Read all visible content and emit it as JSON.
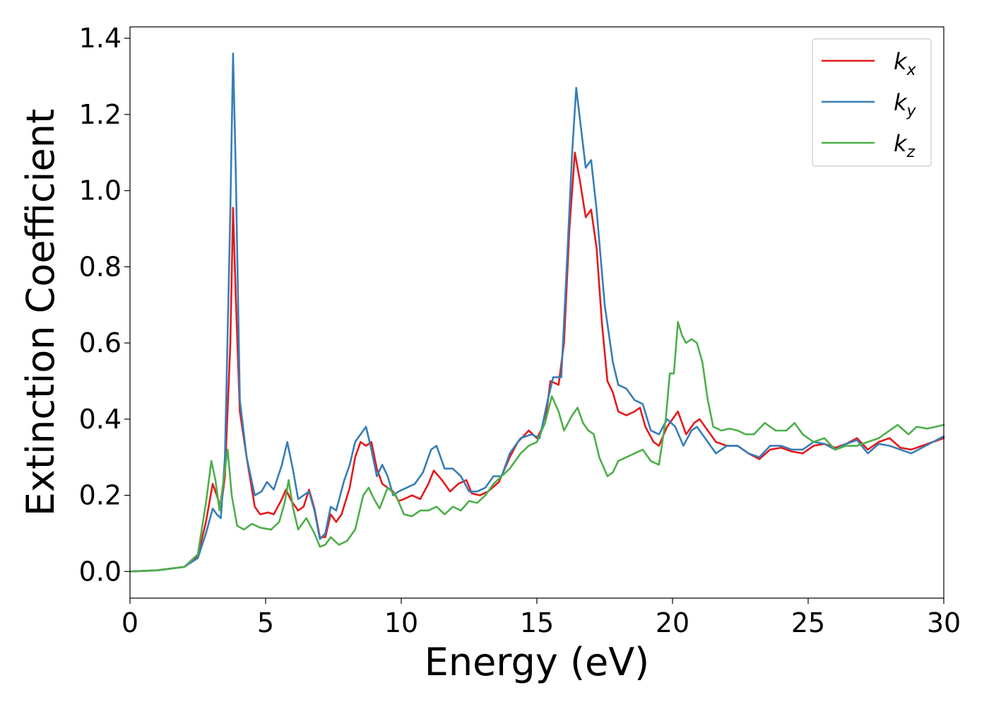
{
  "chart_data": {
    "type": "line",
    "xlabel": "Energy (eV)",
    "ylabel": "Extinction Coefficient",
    "xlim": [
      0,
      30
    ],
    "ylim": [
      -0.07,
      1.43
    ],
    "xticks": [
      0,
      5,
      10,
      15,
      20,
      25,
      30
    ],
    "yticks": [
      0.0,
      0.2,
      0.4,
      0.6,
      0.8,
      1.0,
      1.2,
      1.4
    ],
    "xtick_labels": [
      "0",
      "5",
      "10",
      "15",
      "20",
      "25",
      "30"
    ],
    "ytick_labels": [
      "0.0",
      "0.2",
      "0.4",
      "0.6",
      "0.8",
      "1.0",
      "1.2",
      "1.4"
    ],
    "legend_position": "top-right",
    "grid": false,
    "series": [
      {
        "name": "k_x",
        "legend_base": "k",
        "legend_sub": "x",
        "color": "#e41a1c",
        "points": [
          [
            0,
            0
          ],
          [
            1,
            0.003
          ],
          [
            2,
            0.012
          ],
          [
            2.5,
            0.04
          ],
          [
            2.8,
            0.13
          ],
          [
            3.05,
            0.23
          ],
          [
            3.2,
            0.2
          ],
          [
            3.35,
            0.165
          ],
          [
            3.5,
            0.25
          ],
          [
            3.7,
            0.6
          ],
          [
            3.8,
            0.955
          ],
          [
            3.9,
            0.72
          ],
          [
            4.05,
            0.42
          ],
          [
            4.3,
            0.3
          ],
          [
            4.6,
            0.17
          ],
          [
            4.8,
            0.15
          ],
          [
            5.1,
            0.155
          ],
          [
            5.3,
            0.15
          ],
          [
            5.6,
            0.19
          ],
          [
            5.75,
            0.215
          ],
          [
            5.95,
            0.185
          ],
          [
            6.2,
            0.16
          ],
          [
            6.4,
            0.17
          ],
          [
            6.6,
            0.215
          ],
          [
            6.8,
            0.165
          ],
          [
            7.0,
            0.09
          ],
          [
            7.2,
            0.09
          ],
          [
            7.4,
            0.15
          ],
          [
            7.6,
            0.13
          ],
          [
            7.8,
            0.15
          ],
          [
            8.1,
            0.22
          ],
          [
            8.3,
            0.3
          ],
          [
            8.5,
            0.34
          ],
          [
            8.7,
            0.33
          ],
          [
            8.9,
            0.34
          ],
          [
            9.1,
            0.27
          ],
          [
            9.3,
            0.23
          ],
          [
            9.5,
            0.22
          ],
          [
            9.7,
            0.21
          ],
          [
            9.9,
            0.185
          ],
          [
            10.1,
            0.19
          ],
          [
            10.4,
            0.2
          ],
          [
            10.7,
            0.19
          ],
          [
            11.0,
            0.23
          ],
          [
            11.2,
            0.265
          ],
          [
            11.5,
            0.24
          ],
          [
            11.8,
            0.21
          ],
          [
            12.1,
            0.23
          ],
          [
            12.4,
            0.24
          ],
          [
            12.6,
            0.205
          ],
          [
            12.9,
            0.2
          ],
          [
            13.2,
            0.21
          ],
          [
            13.6,
            0.235
          ],
          [
            14.0,
            0.3
          ],
          [
            14.3,
            0.34
          ],
          [
            14.7,
            0.37
          ],
          [
            15.0,
            0.35
          ],
          [
            15.3,
            0.39
          ],
          [
            15.5,
            0.5
          ],
          [
            15.8,
            0.49
          ],
          [
            16.0,
            0.6
          ],
          [
            16.2,
            0.9
          ],
          [
            16.4,
            1.1
          ],
          [
            16.6,
            1.02
          ],
          [
            16.8,
            0.93
          ],
          [
            17.0,
            0.95
          ],
          [
            17.2,
            0.85
          ],
          [
            17.4,
            0.65
          ],
          [
            17.6,
            0.5
          ],
          [
            17.8,
            0.47
          ],
          [
            18.0,
            0.42
          ],
          [
            18.3,
            0.41
          ],
          [
            18.6,
            0.42
          ],
          [
            18.8,
            0.43
          ],
          [
            19.0,
            0.38
          ],
          [
            19.3,
            0.34
          ],
          [
            19.5,
            0.33
          ],
          [
            19.8,
            0.38
          ],
          [
            20.2,
            0.42
          ],
          [
            20.5,
            0.36
          ],
          [
            20.8,
            0.39
          ],
          [
            21.0,
            0.4
          ],
          [
            21.3,
            0.37
          ],
          [
            21.6,
            0.34
          ],
          [
            22.0,
            0.33
          ],
          [
            22.4,
            0.33
          ],
          [
            22.8,
            0.31
          ],
          [
            23.2,
            0.295
          ],
          [
            23.6,
            0.32
          ],
          [
            24.0,
            0.325
          ],
          [
            24.4,
            0.315
          ],
          [
            24.8,
            0.31
          ],
          [
            25.2,
            0.33
          ],
          [
            25.6,
            0.335
          ],
          [
            26.0,
            0.325
          ],
          [
            26.4,
            0.335
          ],
          [
            26.8,
            0.35
          ],
          [
            27.2,
            0.32
          ],
          [
            27.6,
            0.34
          ],
          [
            28.0,
            0.35
          ],
          [
            28.4,
            0.325
          ],
          [
            28.8,
            0.32
          ],
          [
            29.2,
            0.33
          ],
          [
            29.6,
            0.34
          ],
          [
            30.0,
            0.35
          ]
        ]
      },
      {
        "name": "k_y",
        "legend_base": "k",
        "legend_sub": "y",
        "color": "#377eb8",
        "points": [
          [
            0,
            0
          ],
          [
            1,
            0.003
          ],
          [
            2,
            0.012
          ],
          [
            2.5,
            0.035
          ],
          [
            2.8,
            0.1
          ],
          [
            3.05,
            0.165
          ],
          [
            3.2,
            0.15
          ],
          [
            3.35,
            0.14
          ],
          [
            3.5,
            0.3
          ],
          [
            3.7,
            0.95
          ],
          [
            3.8,
            1.36
          ],
          [
            3.9,
            1.05
          ],
          [
            4.05,
            0.45
          ],
          [
            4.3,
            0.3
          ],
          [
            4.6,
            0.2
          ],
          [
            4.85,
            0.21
          ],
          [
            5.05,
            0.235
          ],
          [
            5.3,
            0.215
          ],
          [
            5.6,
            0.28
          ],
          [
            5.8,
            0.34
          ],
          [
            6.0,
            0.27
          ],
          [
            6.2,
            0.19
          ],
          [
            6.4,
            0.2
          ],
          [
            6.6,
            0.21
          ],
          [
            6.8,
            0.16
          ],
          [
            7.0,
            0.085
          ],
          [
            7.2,
            0.1
          ],
          [
            7.4,
            0.17
          ],
          [
            7.6,
            0.16
          ],
          [
            7.9,
            0.24
          ],
          [
            8.1,
            0.28
          ],
          [
            8.3,
            0.34
          ],
          [
            8.5,
            0.36
          ],
          [
            8.7,
            0.38
          ],
          [
            8.9,
            0.32
          ],
          [
            9.1,
            0.25
          ],
          [
            9.3,
            0.28
          ],
          [
            9.5,
            0.25
          ],
          [
            9.7,
            0.2
          ],
          [
            9.9,
            0.21
          ],
          [
            10.2,
            0.22
          ],
          [
            10.5,
            0.23
          ],
          [
            10.8,
            0.26
          ],
          [
            11.1,
            0.32
          ],
          [
            11.3,
            0.33
          ],
          [
            11.6,
            0.27
          ],
          [
            11.9,
            0.27
          ],
          [
            12.2,
            0.25
          ],
          [
            12.5,
            0.21
          ],
          [
            12.8,
            0.21
          ],
          [
            13.1,
            0.22
          ],
          [
            13.4,
            0.25
          ],
          [
            13.7,
            0.25
          ],
          [
            14.0,
            0.31
          ],
          [
            14.4,
            0.35
          ],
          [
            14.8,
            0.36
          ],
          [
            15.1,
            0.35
          ],
          [
            15.4,
            0.45
          ],
          [
            15.6,
            0.51
          ],
          [
            15.9,
            0.51
          ],
          [
            16.1,
            0.8
          ],
          [
            16.3,
            1.1
          ],
          [
            16.45,
            1.27
          ],
          [
            16.6,
            1.18
          ],
          [
            16.8,
            1.06
          ],
          [
            17.0,
            1.08
          ],
          [
            17.2,
            0.95
          ],
          [
            17.5,
            0.7
          ],
          [
            17.8,
            0.55
          ],
          [
            18.0,
            0.49
          ],
          [
            18.3,
            0.48
          ],
          [
            18.6,
            0.45
          ],
          [
            18.9,
            0.44
          ],
          [
            19.2,
            0.37
          ],
          [
            19.5,
            0.36
          ],
          [
            19.8,
            0.4
          ],
          [
            20.1,
            0.38
          ],
          [
            20.4,
            0.33
          ],
          [
            20.7,
            0.37
          ],
          [
            20.9,
            0.38
          ],
          [
            21.2,
            0.35
          ],
          [
            21.6,
            0.31
          ],
          [
            22.0,
            0.33
          ],
          [
            22.4,
            0.33
          ],
          [
            22.8,
            0.31
          ],
          [
            23.2,
            0.3
          ],
          [
            23.6,
            0.33
          ],
          [
            24.0,
            0.33
          ],
          [
            24.4,
            0.32
          ],
          [
            24.8,
            0.32
          ],
          [
            25.2,
            0.34
          ],
          [
            25.6,
            0.335
          ],
          [
            26.0,
            0.32
          ],
          [
            26.4,
            0.335
          ],
          [
            26.8,
            0.345
          ],
          [
            27.2,
            0.31
          ],
          [
            27.6,
            0.335
          ],
          [
            28.0,
            0.33
          ],
          [
            28.4,
            0.32
          ],
          [
            28.8,
            0.31
          ],
          [
            29.2,
            0.325
          ],
          [
            29.6,
            0.34
          ],
          [
            30.0,
            0.355
          ]
        ]
      },
      {
        "name": "k_z",
        "legend_base": "k",
        "legend_sub": "z",
        "color": "#4daf4a",
        "points": [
          [
            0,
            0
          ],
          [
            1,
            0.003
          ],
          [
            2,
            0.012
          ],
          [
            2.5,
            0.045
          ],
          [
            2.8,
            0.18
          ],
          [
            3.0,
            0.29
          ],
          [
            3.15,
            0.24
          ],
          [
            3.3,
            0.16
          ],
          [
            3.45,
            0.24
          ],
          [
            3.6,
            0.32
          ],
          [
            3.75,
            0.2
          ],
          [
            3.95,
            0.12
          ],
          [
            4.2,
            0.11
          ],
          [
            4.5,
            0.125
          ],
          [
            4.8,
            0.115
          ],
          [
            5.2,
            0.11
          ],
          [
            5.5,
            0.13
          ],
          [
            5.7,
            0.18
          ],
          [
            5.85,
            0.24
          ],
          [
            6.0,
            0.17
          ],
          [
            6.2,
            0.11
          ],
          [
            6.5,
            0.14
          ],
          [
            6.8,
            0.1
          ],
          [
            7.0,
            0.065
          ],
          [
            7.2,
            0.07
          ],
          [
            7.4,
            0.09
          ],
          [
            7.7,
            0.07
          ],
          [
            8.0,
            0.08
          ],
          [
            8.3,
            0.11
          ],
          [
            8.6,
            0.2
          ],
          [
            8.8,
            0.22
          ],
          [
            9.0,
            0.19
          ],
          [
            9.2,
            0.165
          ],
          [
            9.5,
            0.22
          ],
          [
            9.8,
            0.2
          ],
          [
            10.1,
            0.15
          ],
          [
            10.4,
            0.145
          ],
          [
            10.7,
            0.16
          ],
          [
            11.0,
            0.16
          ],
          [
            11.3,
            0.17
          ],
          [
            11.6,
            0.15
          ],
          [
            11.9,
            0.17
          ],
          [
            12.2,
            0.16
          ],
          [
            12.5,
            0.185
          ],
          [
            12.8,
            0.18
          ],
          [
            13.1,
            0.2
          ],
          [
            13.4,
            0.23
          ],
          [
            13.7,
            0.25
          ],
          [
            14.0,
            0.27
          ],
          [
            14.4,
            0.31
          ],
          [
            14.7,
            0.33
          ],
          [
            15.0,
            0.34
          ],
          [
            15.3,
            0.39
          ],
          [
            15.55,
            0.46
          ],
          [
            15.8,
            0.42
          ],
          [
            16.0,
            0.37
          ],
          [
            16.3,
            0.41
          ],
          [
            16.5,
            0.43
          ],
          [
            16.7,
            0.39
          ],
          [
            16.9,
            0.37
          ],
          [
            17.1,
            0.36
          ],
          [
            17.3,
            0.3
          ],
          [
            17.6,
            0.25
          ],
          [
            17.8,
            0.26
          ],
          [
            18.0,
            0.29
          ],
          [
            18.3,
            0.3
          ],
          [
            18.6,
            0.31
          ],
          [
            18.9,
            0.32
          ],
          [
            19.2,
            0.29
          ],
          [
            19.5,
            0.28
          ],
          [
            19.75,
            0.4
          ],
          [
            19.9,
            0.52
          ],
          [
            20.05,
            0.52
          ],
          [
            20.2,
            0.655
          ],
          [
            20.35,
            0.62
          ],
          [
            20.5,
            0.6
          ],
          [
            20.7,
            0.61
          ],
          [
            20.9,
            0.6
          ],
          [
            21.1,
            0.55
          ],
          [
            21.3,
            0.45
          ],
          [
            21.5,
            0.38
          ],
          [
            21.8,
            0.37
          ],
          [
            22.1,
            0.375
          ],
          [
            22.4,
            0.37
          ],
          [
            22.7,
            0.36
          ],
          [
            23.0,
            0.36
          ],
          [
            23.4,
            0.39
          ],
          [
            23.8,
            0.37
          ],
          [
            24.2,
            0.37
          ],
          [
            24.5,
            0.39
          ],
          [
            24.8,
            0.36
          ],
          [
            25.2,
            0.34
          ],
          [
            25.6,
            0.35
          ],
          [
            26.0,
            0.32
          ],
          [
            26.4,
            0.33
          ],
          [
            26.8,
            0.33
          ],
          [
            27.2,
            0.34
          ],
          [
            27.6,
            0.35
          ],
          [
            28.0,
            0.37
          ],
          [
            28.3,
            0.385
          ],
          [
            28.7,
            0.36
          ],
          [
            29.0,
            0.38
          ],
          [
            29.4,
            0.375
          ],
          [
            29.7,
            0.38
          ],
          [
            30.0,
            0.385
          ]
        ]
      }
    ]
  }
}
